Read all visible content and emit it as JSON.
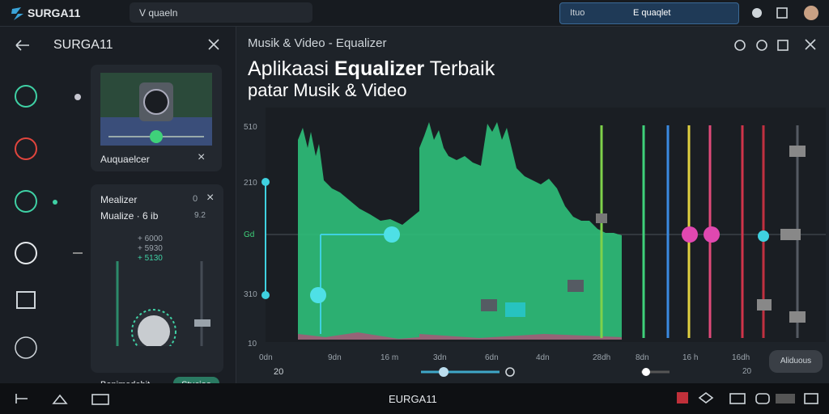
{
  "top_bar": {
    "brand": "SURGA11",
    "search": "V quaeln",
    "field_left": "Ituo",
    "field_right": "E quaqlet"
  },
  "sidebar": {
    "title": "SURGA11",
    "card1": {
      "label": "Auquaelcer"
    },
    "card2": {
      "title": "Mealizer",
      "subtitle": "Mualize · 6 ib",
      "value": "9.2",
      "badge": "0",
      "readouts": [
        "+ 6000",
        "+ 5930",
        "+ 5130"
      ],
      "footer": "Benimedehit",
      "button": "Stucioo"
    }
  },
  "main": {
    "window_title": "Musik & Video - Equalizer",
    "heading": {
      "pre": "Aplikaasi ",
      "bold": "Equalizer",
      "post": " Terbaik"
    },
    "subheading": "patar Musik & Video",
    "y_labels": [
      "510",
      "210",
      "Gd",
      "310",
      "10"
    ],
    "x_labels": [
      "0dn",
      "9dn",
      "16 m",
      "3dn",
      "6dn",
      "4dn",
      "28dh",
      "8dn",
      "16 h",
      "16dh"
    ],
    "x_sub_labels": [
      "20",
      "20"
    ],
    "button": "Aliduous"
  },
  "bottom_bar": {
    "title": "EURGA11"
  }
}
